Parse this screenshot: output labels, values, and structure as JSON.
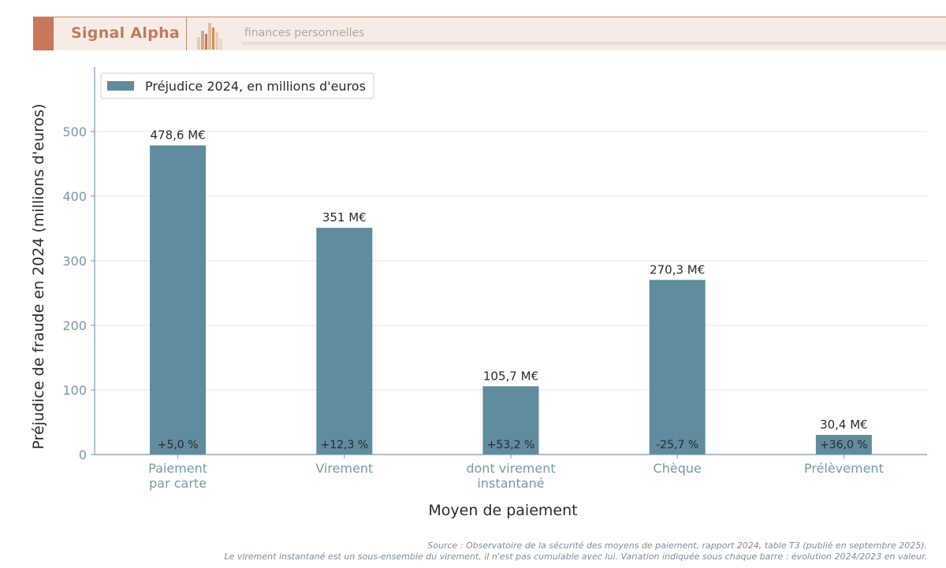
{
  "header": {
    "brand": "Signal Alpha",
    "tagline": "finances personnelles"
  },
  "colors": {
    "bar": "#5f8c9e",
    "axis": "#7a99ab",
    "accent": "#c8775a"
  },
  "chart_data": {
    "type": "bar",
    "categories": [
      [
        "Paiement",
        "par carte"
      ],
      [
        "Virement"
      ],
      [
        "dont virement",
        "instantané"
      ],
      [
        "Chèque"
      ],
      [
        "Prélèvement"
      ]
    ],
    "series": [
      {
        "name": "Préjudice 2024, en millions d'euros",
        "values": [
          478.6,
          351,
          105.7,
          270.3,
          30.4
        ]
      }
    ],
    "value_labels": [
      "478,6 M€",
      "351 M€",
      "105,7 M€",
      "270,3 M€",
      "30,4 M€"
    ],
    "change_labels": [
      "+5,0 %",
      "+12,3 %",
      "+53,2 %",
      "-25,7 %",
      "+36,0 %"
    ],
    "xlabel": "Moyen de paiement",
    "ylabel": "Préjudice de fraude en 2024 (millions d'euros)",
    "ylim": [
      0,
      600
    ],
    "yticks": [
      0,
      100,
      200,
      300,
      400,
      500
    ],
    "grid": true,
    "legend_position": "top-left"
  },
  "source": {
    "line1": "Source : Observatoire de la sécurité des moyens de paiement, rapport 2024, table T3 (publié en septembre 2025).",
    "line2": "Le virement instantané est un sous-ensemble du virement, il n'est pas cumulable avec lui. Variation indiquée sous chaque barre : évolution 2024/2023 en valeur."
  }
}
